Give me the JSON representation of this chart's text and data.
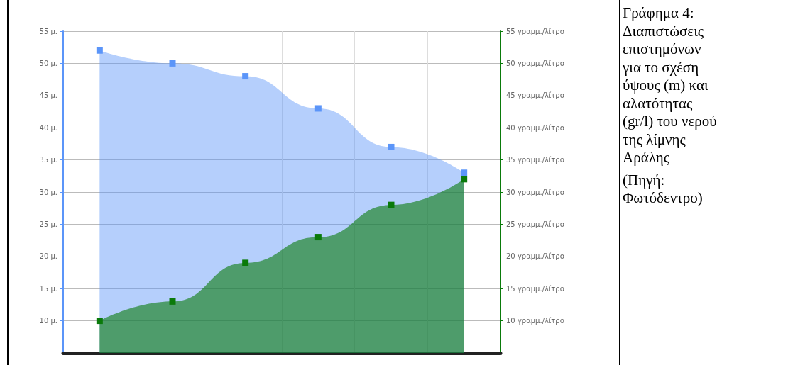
{
  "chart_data": {
    "type": "area",
    "title": "Γράφημα 4: Διαπιστώσεις επιστημόνων για το σχέση ύψους (m) και αλατότητας (gr/l) του νερού της λίμνης Αράλης",
    "annotations": [
      "(Πηγή: Φωτόδεντρο)"
    ],
    "categories": [
      null,
      null,
      null,
      null,
      null,
      null
    ],
    "series": [
      {
        "color": "#5b95f9",
        "values": [
          52,
          50,
          48,
          43,
          37,
          33
        ]
      },
      {
        "color": "#0a7a0a",
        "axis": "y2",
        "values": [
          10,
          13,
          19,
          23,
          28,
          32
        ]
      }
    ],
    "ylim": [
      5,
      55
    ],
    "yticks": [
      {
        "value": 10,
        "label": "10 μ."
      },
      {
        "value": 15,
        "label": "15 μ."
      },
      {
        "value": 20,
        "label": "20 μ."
      },
      {
        "value": 25,
        "label": "25 μ."
      },
      {
        "value": 30,
        "label": "30 μ."
      },
      {
        "value": 35,
        "label": "35 μ."
      },
      {
        "value": 40,
        "label": "40 μ."
      },
      {
        "value": 45,
        "label": "45 μ."
      },
      {
        "value": 50,
        "label": "50 μ."
      },
      {
        "value": 55,
        "label": "55 μ."
      }
    ],
    "y2lim": [
      5,
      55
    ],
    "y2ticks": [
      {
        "value": 10,
        "label": "10 γραμμ./λίτρο"
      },
      {
        "value": 15,
        "label": "15 γραμμ./λίτρο"
      },
      {
        "value": 20,
        "label": "20 γραμμ./λίτρο"
      },
      {
        "value": 25,
        "label": "25 γραμμ./λίτρο"
      },
      {
        "value": 30,
        "label": "30 γραμμ./λίτρο"
      },
      {
        "value": 35,
        "label": "35 γραμμ./λίτρο"
      },
      {
        "value": 40,
        "label": "40 γραμμ./λίτρο"
      },
      {
        "value": 45,
        "label": "45 γραμμ./λίτρο"
      },
      {
        "value": 50,
        "label": "50 γραμμ./λίτρο"
      },
      {
        "value": 55,
        "label": "55 γραμμ./λίτρο"
      }
    ],
    "grid": true,
    "marker": "square"
  }
}
